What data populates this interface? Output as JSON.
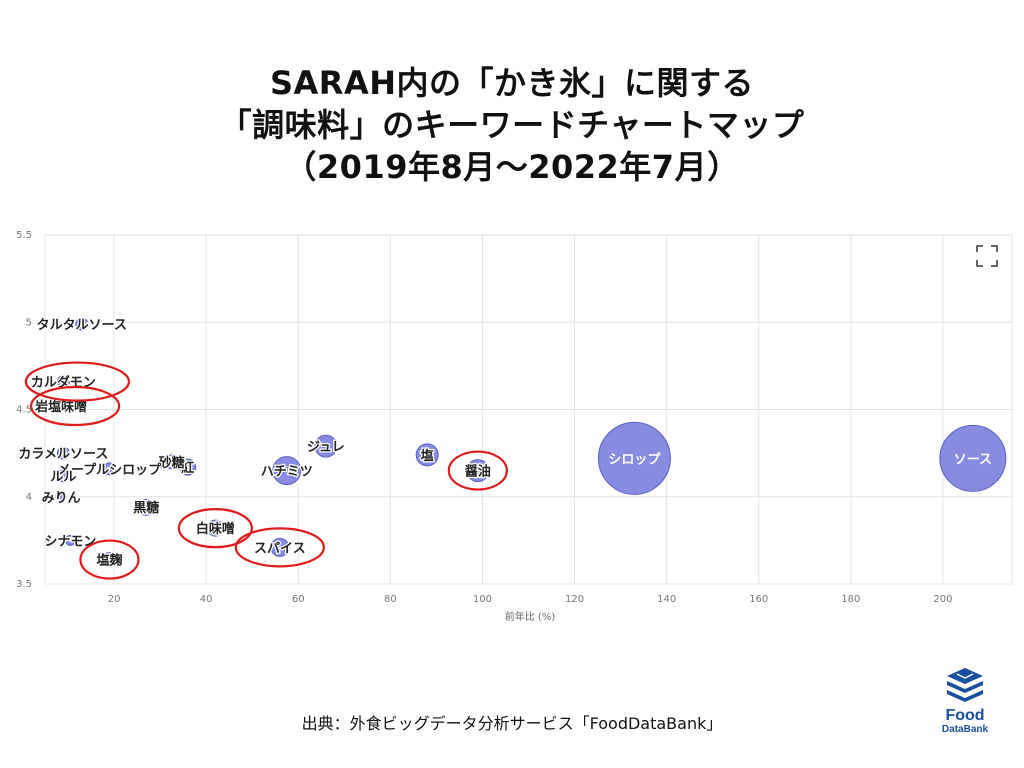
{
  "title": {
    "line1": "SARAH内の「かき氷」に関する",
    "line2": "「調味料」のキーワードチャートマップ",
    "line3": "（2019年8月〜2022年7月）"
  },
  "source": "出典：外食ビッグデータ分析サービス「FoodDataBank」",
  "logo": {
    "name1": "Food",
    "name2": "DataBank"
  },
  "colors": {
    "bubble_fill": "#7a80dd",
    "bubble_stroke": "#5a60c0",
    "circle_highlight": "#e01b1b",
    "grid": "#e4e4e4"
  },
  "chart_data": {
    "type": "scatter",
    "xlabel": "前年比 (%)",
    "ylabel": "",
    "xlim": [
      5,
      215
    ],
    "ylim": [
      3.5,
      5.5
    ],
    "xticks": [
      20,
      40,
      60,
      80,
      100,
      120,
      140,
      160,
      180,
      200
    ],
    "yticks": [
      3.5,
      4,
      4.5,
      5,
      5.5
    ],
    "grid": true,
    "expand_icon": "fullscreen-icon",
    "points": [
      {
        "label": "ソース",
        "x": 206.5,
        "y": 4.22,
        "size": 33,
        "highlighted": false
      },
      {
        "label": "シロップ",
        "x": 133,
        "y": 4.22,
        "size": 36,
        "highlighted": false
      },
      {
        "label": "醤油",
        "x": 99,
        "y": 4.15,
        "size": 11,
        "highlighted": true
      },
      {
        "label": "塩",
        "x": 88,
        "y": 4.24,
        "size": 11,
        "highlighted": false
      },
      {
        "label": "ジュレ",
        "x": 66,
        "y": 4.29,
        "size": 11,
        "highlighted": false
      },
      {
        "label": "ハチミツ",
        "x": 57.5,
        "y": 4.15,
        "size": 14,
        "highlighted": false
      },
      {
        "label": "スパイス",
        "x": 56,
        "y": 3.71,
        "size": 9,
        "highlighted": true
      },
      {
        "label": "白味噌",
        "x": 42,
        "y": 3.82,
        "size": 8,
        "highlighted": true
      },
      {
        "label": "紅",
        "x": 36,
        "y": 4.17,
        "size": 8,
        "highlighted": false
      },
      {
        "label": "砂糖",
        "x": 32.5,
        "y": 4.2,
        "size": 7,
        "highlighted": false
      },
      {
        "label": "黒糖",
        "x": 27,
        "y": 3.94,
        "size": 8,
        "highlighted": false
      },
      {
        "label": "塩麹",
        "x": 19,
        "y": 3.64,
        "size": 7,
        "highlighted": true
      },
      {
        "label": "メープルシロップ",
        "x": 19,
        "y": 4.16,
        "size": 6,
        "highlighted": false
      },
      {
        "label": "タルタルソース",
        "x": 13,
        "y": 4.99,
        "size": 6,
        "highlighted": false
      },
      {
        "label": "カルダモン",
        "x": 9,
        "y": 4.66,
        "size": 6,
        "highlighted": true
      },
      {
        "label": "岩塩味噌",
        "x": 8.5,
        "y": 4.52,
        "size": 5,
        "highlighted": true
      },
      {
        "label": "カラメルソース",
        "x": 9,
        "y": 4.25,
        "size": 6,
        "highlighted": false
      },
      {
        "label": "ルル",
        "x": 9,
        "y": 4.12,
        "size": 6,
        "highlighted": false
      },
      {
        "label": "みりん",
        "x": 8.5,
        "y": 4.0,
        "size": 5,
        "highlighted": false
      },
      {
        "label": "シナモン",
        "x": 10.5,
        "y": 3.75,
        "size": 5,
        "highlighted": false
      }
    ]
  }
}
